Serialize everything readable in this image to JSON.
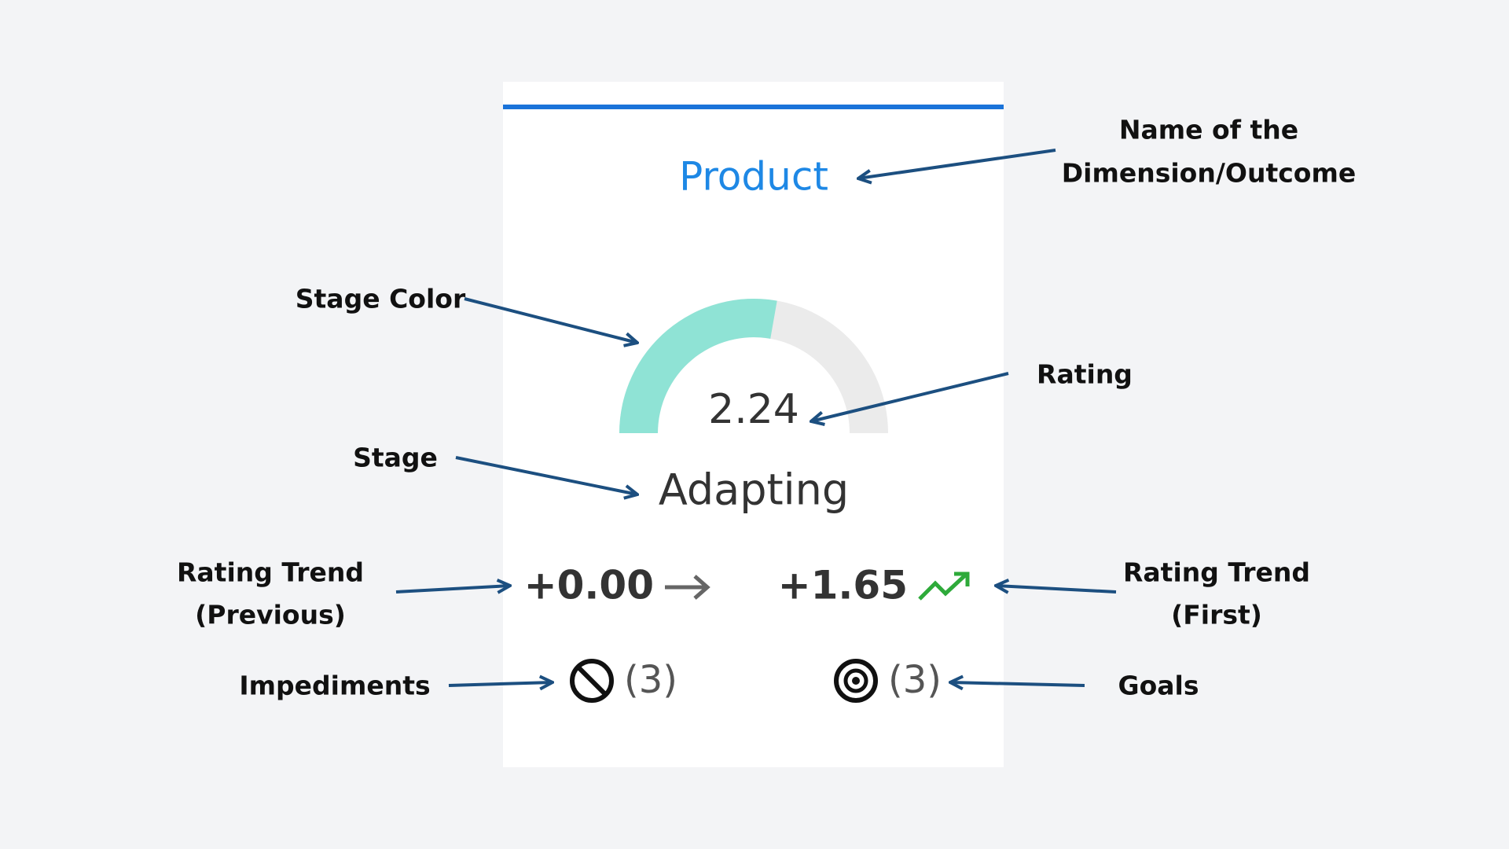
{
  "card": {
    "title": "Product",
    "rating": "2.24",
    "stage": "Adapting",
    "trend_previous": "+0.00",
    "trend_first": "+1.65",
    "impediments": "(3)",
    "goals": "(3)"
  },
  "annotations": {
    "name": [
      "Name of the",
      "Dimension/Outcome"
    ],
    "stage_color": "Stage Color",
    "rating": "Rating",
    "stage": "Stage",
    "trend_previous": [
      "Rating Trend",
      "(Previous)"
    ],
    "trend_first": [
      "Rating Trend",
      "(First)"
    ],
    "impediments": "Impediments",
    "goals": "Goals"
  }
}
